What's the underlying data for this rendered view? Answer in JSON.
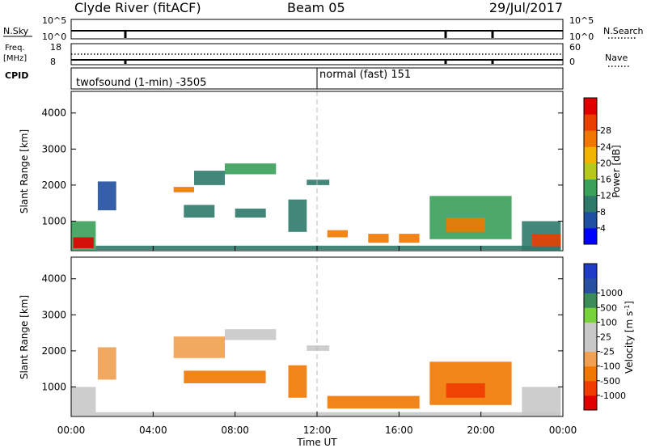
{
  "header": {
    "station": "Clyde River (fitACF)",
    "beam": "Beam 05",
    "date": "29/Jul/2017"
  },
  "aux": {
    "nsky_label": "N.Sky",
    "nsearch_label": "N.Search",
    "freq_label": "Freq.",
    "mhz_label": "[MHz]",
    "cpid_label": "CPID",
    "nave_label": "Nave",
    "nsky_top": "10^5",
    "nsky_bot": "10^0",
    "nsearch_top": "10^5",
    "nsearch_bot": "10^0",
    "freq_top": "18",
    "freq_bot": "8",
    "nave_top": "60",
    "nave_bot": "0"
  },
  "cpid": {
    "mode1": "twofsound (1-min) -3505",
    "mode2": "normal (fast) 151"
  },
  "colors": {
    "power": [
      "#0000ff",
      "#1f4fa0",
      "#2e7a6a",
      "#3aa05a",
      "#b4c81e",
      "#f0b400",
      "#f07800",
      "#e84000",
      "#e00000"
    ],
    "velocity": [
      "#e00000",
      "#f03c00",
      "#f07800",
      "#f0a050",
      "#c8c8c8",
      "#c8c8c8",
      "#78d23c",
      "#3c8c5a",
      "#2850a0",
      "#1e3cc8"
    ]
  },
  "chart_data": [
    {
      "type": "heatmap",
      "title": "Power",
      "ylabel": "Slant Range [km]",
      "ylim": [
        180,
        4600
      ],
      "xlim": [
        0,
        24
      ],
      "yticks": [
        "1000",
        "2000",
        "3000",
        "4000"
      ],
      "xticks": [
        "00:00",
        "04:00",
        "08:00",
        "12:00",
        "16:00",
        "20:00",
        "00:00"
      ],
      "colorbar": {
        "label": "Power [dB]",
        "ticks": [
          "4",
          "8",
          "12",
          "16",
          "20",
          "24",
          "28"
        ],
        "range": [
          0,
          30
        ]
      },
      "features": [
        {
          "t0": 0.0,
          "t1": 1.2,
          "r0": 200,
          "r1": 1000,
          "value": 10
        },
        {
          "t0": 0.1,
          "t1": 1.1,
          "r0": 250,
          "r1": 550,
          "value": 27
        },
        {
          "t0": 1.2,
          "t1": 23.9,
          "r0": 200,
          "r1": 320,
          "value": 8
        },
        {
          "t0": 1.3,
          "t1": 2.2,
          "r0": 1300,
          "r1": 2100,
          "value": 6
        },
        {
          "t0": 5.0,
          "t1": 6.0,
          "r0": 1800,
          "r1": 1950,
          "value": 20
        },
        {
          "t0": 6.0,
          "t1": 7.5,
          "r0": 2000,
          "r1": 2400,
          "value": 7
        },
        {
          "t0": 7.5,
          "t1": 10.0,
          "r0": 2300,
          "r1": 2600,
          "value": 10
        },
        {
          "t0": 5.5,
          "t1": 7.0,
          "r0": 1100,
          "r1": 1450,
          "value": 9
        },
        {
          "t0": 8.0,
          "t1": 9.5,
          "r0": 1100,
          "r1": 1350,
          "value": 8
        },
        {
          "t0": 10.6,
          "t1": 11.5,
          "r0": 700,
          "r1": 1600,
          "value": 7
        },
        {
          "t0": 11.5,
          "t1": 12.6,
          "r0": 2000,
          "r1": 2150,
          "value": 8
        },
        {
          "t0": 12.5,
          "t1": 13.5,
          "r0": 550,
          "r1": 750,
          "value": 22
        },
        {
          "t0": 14.5,
          "t1": 15.5,
          "r0": 400,
          "r1": 650,
          "value": 20
        },
        {
          "t0": 16.0,
          "t1": 17.0,
          "r0": 400,
          "r1": 650,
          "value": 22
        },
        {
          "t0": 17.5,
          "t1": 21.5,
          "r0": 500,
          "r1": 1700,
          "value": 13
        },
        {
          "t0": 18.3,
          "t1": 20.2,
          "r0": 700,
          "r1": 1100,
          "value": 20
        },
        {
          "t0": 22.0,
          "t1": 23.9,
          "r0": 200,
          "r1": 1000,
          "value": 9
        },
        {
          "t0": 22.5,
          "t1": 23.9,
          "r0": 300,
          "r1": 650,
          "value": 26
        }
      ]
    },
    {
      "type": "heatmap",
      "title": "Velocity",
      "ylabel": "Slant Range [km]",
      "ylim": [
        180,
        4600
      ],
      "xlim": [
        0,
        24
      ],
      "yticks": [
        "1000",
        "2000",
        "3000",
        "4000"
      ],
      "xticks": [
        "00:00",
        "04:00",
        "08:00",
        "12:00",
        "16:00",
        "20:00",
        "00:00"
      ],
      "xlabel": "Time UT",
      "colorbar": {
        "label": "Velocity [m s-1]",
        "ticks": [
          "-1000",
          "-500",
          "-100",
          "-25",
          "25",
          "100",
          "500",
          "1000"
        ]
      },
      "features": [
        {
          "t0": 0.0,
          "t1": 1.2,
          "r0": 200,
          "r1": 1000,
          "value": 0
        },
        {
          "t0": 1.2,
          "t1": 23.9,
          "r0": 200,
          "r1": 300,
          "value": 60
        },
        {
          "t0": 1.3,
          "t1": 2.2,
          "r0": 1200,
          "r1": 2100,
          "value": -60
        },
        {
          "t0": 5.0,
          "t1": 7.5,
          "r0": 1800,
          "r1": 2400,
          "value": -60
        },
        {
          "t0": 7.5,
          "t1": 10.0,
          "r0": 2300,
          "r1": 2600,
          "value": 0
        },
        {
          "t0": 5.5,
          "t1": 9.5,
          "r0": 1100,
          "r1": 1450,
          "value": -200
        },
        {
          "t0": 10.6,
          "t1": 11.5,
          "r0": 700,
          "r1": 1600,
          "value": -200
        },
        {
          "t0": 11.5,
          "t1": 12.6,
          "r0": 2000,
          "r1": 2150,
          "value": 0
        },
        {
          "t0": 12.5,
          "t1": 17.0,
          "r0": 400,
          "r1": 750,
          "value": -300
        },
        {
          "t0": 17.5,
          "t1": 21.5,
          "r0": 500,
          "r1": 1700,
          "value": -400
        },
        {
          "t0": 18.3,
          "t1": 20.2,
          "r0": 700,
          "r1": 1100,
          "value": -700
        },
        {
          "t0": 22.0,
          "t1": 23.9,
          "r0": 200,
          "r1": 1000,
          "value": 0
        }
      ]
    }
  ]
}
